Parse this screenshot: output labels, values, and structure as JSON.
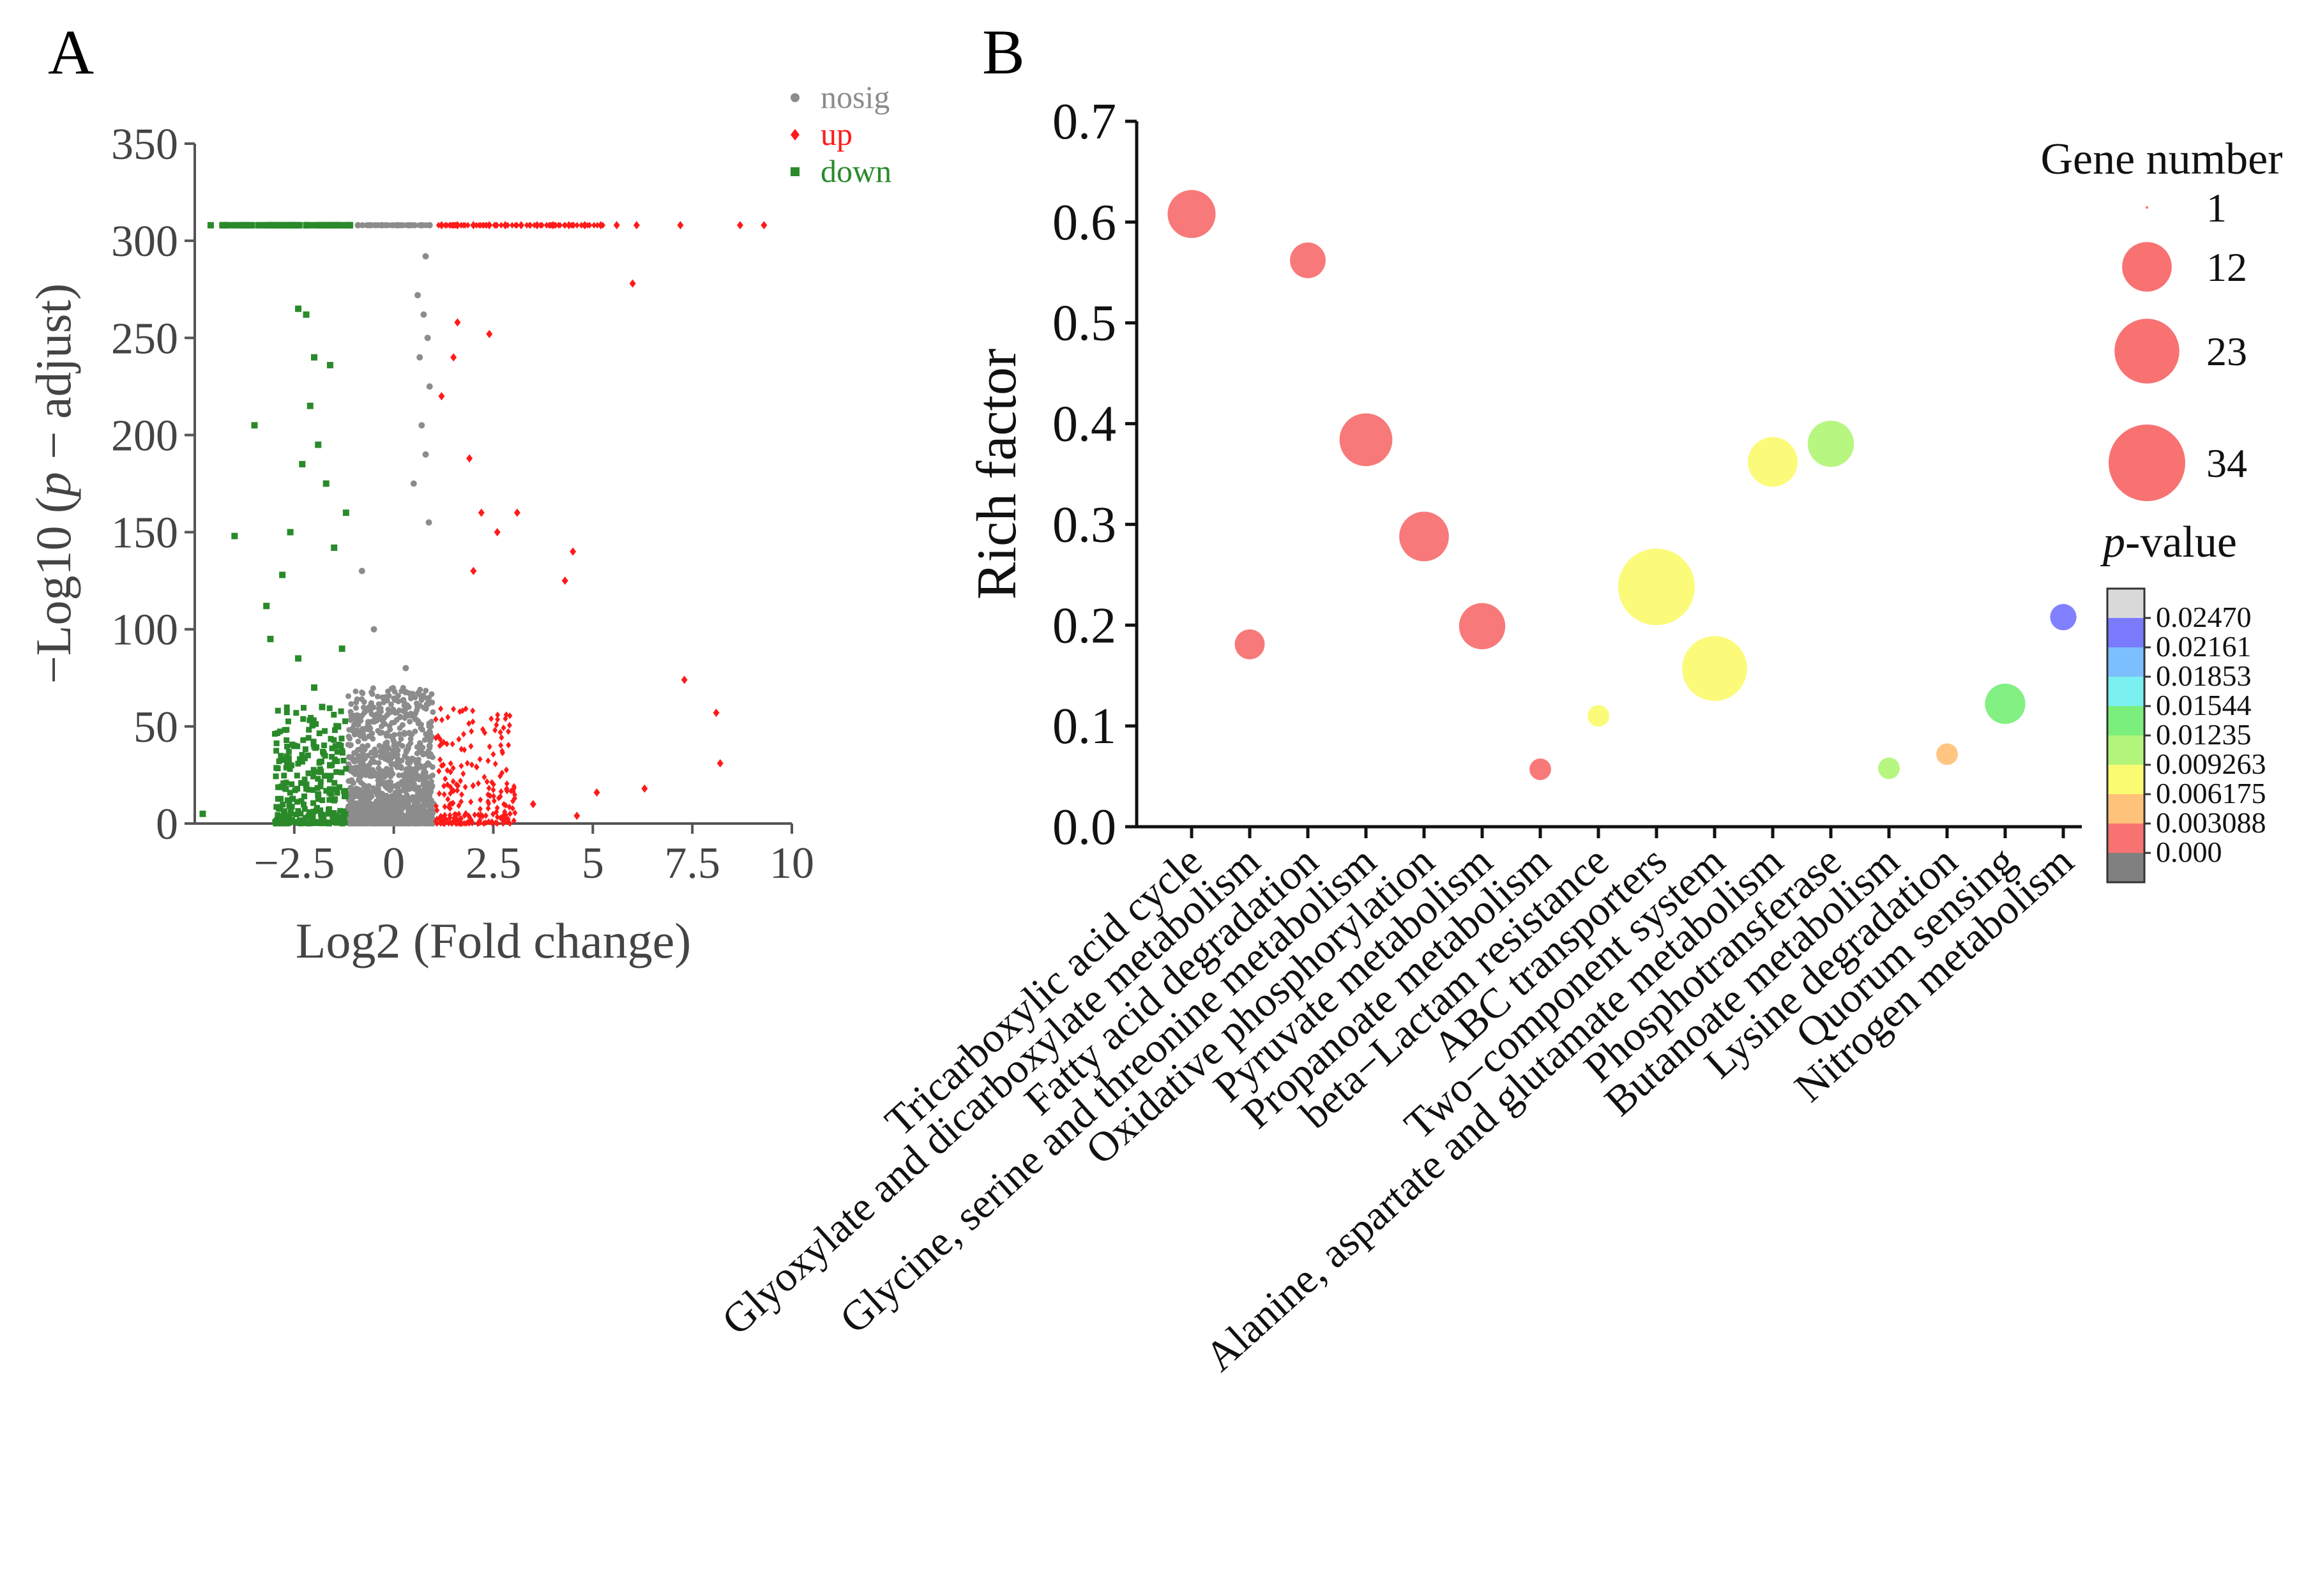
{
  "chart_data": [
    {
      "panel_label": "A",
      "type": "scatter",
      "title": "",
      "xlabel": "Log2 (Fold change)",
      "ylabel_parts": [
        "−Log10 (",
        "p",
        " − adjust)"
      ],
      "xlim": [
        -5,
        10
      ],
      "ylim": [
        0,
        350
      ],
      "xticks": [
        -2.5,
        0,
        2.5,
        5,
        7.5,
        10
      ],
      "xtick_labels": [
        "−2.5",
        "0",
        "2.5",
        "5",
        "7.5",
        "10"
      ],
      "yticks": [
        0,
        50,
        100,
        150,
        200,
        250,
        300,
        350
      ],
      "ytick_labels": [
        "0",
        "50",
        "100",
        "150",
        "200",
        "250",
        "300",
        "350"
      ],
      "legend": {
        "position": "top-right",
        "entries": [
          {
            "label": "nosig",
            "color": "#8c8c8c",
            "marker": "circle"
          },
          {
            "label": "up",
            "color": "#ff1a1a",
            "marker": "diamond"
          },
          {
            "label": "down",
            "color": "#2a8a2a",
            "marker": "square"
          }
        ]
      },
      "series": [
        {
          "name": "nosig",
          "color": "#8c8c8c",
          "x": [
            -0.9,
            -0.6,
            -0.3,
            0.1,
            0.4,
            0.7,
            0.9,
            0.8,
            0.6,
            0.75,
            0.85,
            0.65,
            0.9,
            0.7,
            0.8,
            0.5,
            0.88,
            -0.8,
            -0.5,
            0.3,
            0.6,
            0.9,
            -0.2
          ],
          "y": [
            308,
            308,
            308,
            308,
            308,
            308,
            308,
            292,
            272,
            262,
            250,
            240,
            225,
            205,
            190,
            175,
            155,
            130,
            100,
            80,
            60,
            40,
            20
          ]
        },
        {
          "name": "up",
          "color": "#ff1a1a",
          "x": [
            1.2,
            1.6,
            2.0,
            2.4,
            2.8,
            3.2,
            3.6,
            4.0,
            4.4,
            4.8,
            5.2,
            5.6,
            6.1,
            7.2,
            8.7,
            9.3,
            6.0,
            2.4,
            1.6,
            3.1,
            1.9,
            2.2,
            2.6,
            4.5,
            4.3,
            7.3,
            8.1,
            8.2,
            6.3,
            5.1,
            2.0,
            1.5,
            1.2,
            3.5,
            4.6,
            1.3
          ],
          "y": [
            308,
            308,
            308,
            308,
            308,
            308,
            308,
            308,
            308,
            308,
            308,
            308,
            308,
            308,
            308,
            308,
            278,
            252,
            258,
            160,
            188,
            160,
            150,
            140,
            125,
            74,
            57,
            31,
            18,
            16,
            130,
            240,
            220,
            10,
            4,
            2
          ]
        },
        {
          "name": "down",
          "color": "#2a8a2a",
          "x": [
            -4.6,
            -4.2,
            -3.8,
            -3.4,
            -3.0,
            -2.6,
            -2.2,
            -1.8,
            -1.4,
            -1.1,
            -2.4,
            -2.2,
            -3.5,
            -4.0,
            -3.2,
            -2.0,
            -1.6,
            -2.1,
            -1.9,
            -2.3,
            -1.7,
            -1.2,
            -2.6,
            -1.5,
            -2.8,
            -3.1,
            -2.4,
            -1.3,
            -2.0,
            -1.8,
            -1.4,
            -2.5,
            -1.6,
            -2.2,
            -1.9,
            -4.8
          ],
          "y": [
            308,
            308,
            308,
            308,
            308,
            308,
            308,
            308,
            308,
            308,
            265,
            262,
            205,
            148,
            112,
            240,
            236,
            215,
            195,
            185,
            175,
            160,
            150,
            142,
            128,
            95,
            85,
            90,
            70,
            60,
            50,
            40,
            30,
            20,
            15,
            5
          ]
        }
      ]
    },
    {
      "panel_label": "B",
      "type": "scatter",
      "title": "",
      "xlabel": "",
      "ylabel": "Rich factor",
      "ylim": [
        0,
        0.7
      ],
      "yticks": [
        0.0,
        0.1,
        0.2,
        0.3,
        0.4,
        0.5,
        0.6,
        0.7
      ],
      "ytick_labels": [
        "0.0",
        "0.1",
        "0.2",
        "0.3",
        "0.4",
        "0.5",
        "0.6",
        "0.7"
      ],
      "categories": [
        "Tricarboxylic acid cycle",
        "Glyoxylate and dicarboxylate metabolism",
        "Fatty acid degradation",
        "Glycine, serine and threonine metabolism",
        "Oxidative phosphorylation",
        "Pyruvate metabolism",
        "Propanoate metabolism",
        "beta−Lactam resistance",
        "ABC transporters",
        "Two−component system",
        "Alanine, aspartate and glutamate metabolism",
        "Phosphotransferase",
        "Butanoate metabolism",
        "Lysine degradation",
        "Quorum sensing",
        "Nitrogen metabolism"
      ],
      "rich_factor": [
        0.608,
        0.181,
        0.562,
        0.384,
        0.288,
        0.199,
        0.057,
        0.11,
        0.238,
        0.157,
        0.362,
        0.38,
        0.058,
        0.072,
        0.122,
        0.208
      ],
      "gene_number": [
        11,
        3,
        5,
        14,
        12,
        10,
        1,
        1,
        34,
        23,
        12,
        10,
        1,
        1,
        7,
        2
      ],
      "p_value": [
        0.0002,
        0.0015,
        0.0012,
        0.0004,
        0.0008,
        0.0018,
        0.0022,
        0.0083,
        0.0085,
        0.0086,
        0.0088,
        0.0115,
        0.012,
        0.006,
        0.013,
        0.022
      ],
      "size_legend": {
        "title": "Gene number",
        "values": [
          1,
          12,
          23,
          34
        ],
        "labels": [
          "1",
          "12",
          "23",
          "34"
        ],
        "color": "#f87272"
      },
      "color_legend": {
        "title_italic": "p",
        "title_rest": "-value",
        "labels": [
          "0.02470",
          "0.02161",
          "0.01853",
          "0.01544",
          "0.01235",
          "0.009263",
          "0.006175",
          "0.003088",
          "0.000"
        ],
        "bands_top_to_bottom": [
          "#d9d9d9",
          "#7a7aff",
          "#7cbfff",
          "#7bf0f0",
          "#7bef7b",
          "#b3f57a",
          "#fbfb72",
          "#ffc27a",
          "#f87272",
          "#808080"
        ]
      }
    }
  ]
}
